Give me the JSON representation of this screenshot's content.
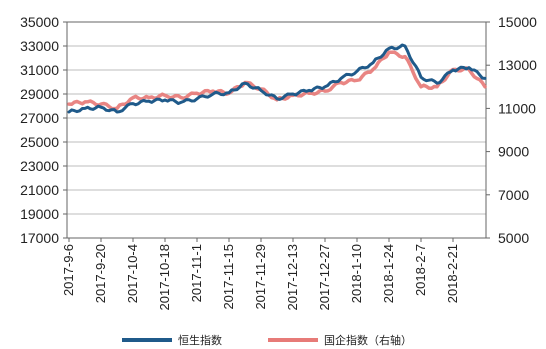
{
  "chart_data": {
    "type": "line",
    "grid": true,
    "legend_position": "bottom",
    "x_ticks": [
      "2017-9-6",
      "2017-9-20",
      "2017-10-4",
      "2017-10-18",
      "2017-11-1",
      "2017-11-15",
      "2017-11-29",
      "2017-12-13",
      "2017-12-27",
      "2018-1-10",
      "2018-1-24",
      "2018-2-7",
      "2018-2-21"
    ],
    "y_left": {
      "min": 17000,
      "max": 35000,
      "ticks": [
        "17000",
        "19000",
        "21000",
        "23000",
        "25000",
        "27000",
        "29000",
        "31000",
        "33000",
        "35000"
      ]
    },
    "y_right": {
      "min": 5000,
      "max": 15000,
      "ticks": [
        "5000",
        "7000",
        "9000",
        "11000",
        "13000",
        "15000"
      ]
    },
    "series": [
      {
        "name": "恒生指数",
        "axis": "left",
        "color": "#1f5a8a",
        "points": [
          [
            "2017-9-6",
            27500
          ],
          [
            "2017-9-13",
            27800
          ],
          [
            "2017-9-20",
            27900
          ],
          [
            "2017-9-27",
            27500
          ],
          [
            "2017-10-4",
            28200
          ],
          [
            "2017-10-11",
            28400
          ],
          [
            "2017-10-18",
            28500
          ],
          [
            "2017-10-25",
            28300
          ],
          [
            "2017-11-1",
            28600
          ],
          [
            "2017-11-8",
            29000
          ],
          [
            "2017-11-15",
            29100
          ],
          [
            "2017-11-22",
            29900
          ],
          [
            "2017-11-29",
            29300
          ],
          [
            "2017-12-6",
            28600
          ],
          [
            "2017-12-13",
            29000
          ],
          [
            "2017-12-20",
            29300
          ],
          [
            "2017-12-27",
            29600
          ],
          [
            "2018-1-3",
            30300
          ],
          [
            "2018-1-10",
            30900
          ],
          [
            "2018-1-17",
            31600
          ],
          [
            "2018-1-24",
            32800
          ],
          [
            "2018-1-31",
            33000
          ],
          [
            "2018-2-7",
            30400
          ],
          [
            "2018-2-14",
            29900
          ],
          [
            "2018-2-21",
            31000
          ],
          [
            "2018-2-28",
            31200
          ],
          [
            "2018-3-7",
            30300
          ]
        ]
      },
      {
        "name": "国企指数（右轴）",
        "axis": "right",
        "color": "#e77b78",
        "points": [
          [
            "2017-9-6",
            11200
          ],
          [
            "2017-9-13",
            11300
          ],
          [
            "2017-9-20",
            11200
          ],
          [
            "2017-9-27",
            11000
          ],
          [
            "2017-10-4",
            11500
          ],
          [
            "2017-10-11",
            11500
          ],
          [
            "2017-10-18",
            11600
          ],
          [
            "2017-10-25",
            11500
          ],
          [
            "2017-11-1",
            11700
          ],
          [
            "2017-11-8",
            11800
          ],
          [
            "2017-11-15",
            11700
          ],
          [
            "2017-11-22",
            12200
          ],
          [
            "2017-11-29",
            11900
          ],
          [
            "2017-12-6",
            11400
          ],
          [
            "2017-12-13",
            11600
          ],
          [
            "2017-12-20",
            11700
          ],
          [
            "2017-12-27",
            11800
          ],
          [
            "2018-1-3",
            12200
          ],
          [
            "2018-1-10",
            12300
          ],
          [
            "2018-1-17",
            12800
          ],
          [
            "2018-1-24",
            13600
          ],
          [
            "2018-1-31",
            13400
          ],
          [
            "2018-2-7",
            12000
          ],
          [
            "2018-2-14",
            12000
          ],
          [
            "2018-2-21",
            12800
          ],
          [
            "2018-2-28",
            12800
          ],
          [
            "2018-3-7",
            12000
          ]
        ]
      }
    ]
  }
}
